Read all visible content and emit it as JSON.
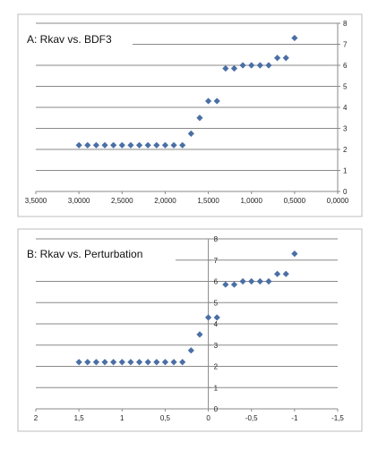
{
  "chart_data": [
    {
      "type": "scatter",
      "title": "A: Rkav vs. BDF3",
      "xlabel": "",
      "ylabel": "",
      "x_reversed": true,
      "xlim": [
        0,
        3.5
      ],
      "ylim": [
        0,
        8
      ],
      "grid": true,
      "x_ticks": [
        "3,5000",
        "3,0000",
        "2,5000",
        "2,0000",
        "1,5000",
        "1,0000",
        "0,5000",
        "0,0000"
      ],
      "y_ticks": [
        "0",
        "1",
        "2",
        "3",
        "4",
        "5",
        "6",
        "7",
        "8"
      ],
      "marker_color": "#4a6fa5",
      "points": [
        [
          3.0,
          2.2
        ],
        [
          2.9,
          2.2
        ],
        [
          2.8,
          2.2
        ],
        [
          2.7,
          2.2
        ],
        [
          2.6,
          2.2
        ],
        [
          2.5,
          2.2
        ],
        [
          2.4,
          2.2
        ],
        [
          2.3,
          2.2
        ],
        [
          2.2,
          2.2
        ],
        [
          2.1,
          2.2
        ],
        [
          2.0,
          2.2
        ],
        [
          1.9,
          2.2
        ],
        [
          1.8,
          2.2
        ],
        [
          1.7,
          2.75
        ],
        [
          1.6,
          3.5
        ],
        [
          1.5,
          4.3
        ],
        [
          1.4,
          4.3
        ],
        [
          1.3,
          5.85
        ],
        [
          1.2,
          5.85
        ],
        [
          1.1,
          6.0
        ],
        [
          1.0,
          6.0
        ],
        [
          0.9,
          6.0
        ],
        [
          0.8,
          6.0
        ],
        [
          0.7,
          6.35
        ],
        [
          0.6,
          6.35
        ],
        [
          0.5,
          7.3
        ]
      ]
    },
    {
      "type": "scatter",
      "title": "B: Rkav vs. Perturbation",
      "xlabel": "",
      "ylabel": "",
      "x_reversed": true,
      "xlim": [
        -1.5,
        2
      ],
      "ylim": [
        0,
        8
      ],
      "grid": true,
      "x_ticks": [
        "2",
        "1,5",
        "1",
        "0,5",
        "0",
        "-0,5",
        "-1",
        "-1,5"
      ],
      "y_ticks": [
        "0",
        "1",
        "2",
        "3",
        "4",
        "5",
        "6",
        "7",
        "8"
      ],
      "marker_color": "#4a6fa5",
      "points": [
        [
          1.5,
          2.2
        ],
        [
          1.4,
          2.2
        ],
        [
          1.3,
          2.2
        ],
        [
          1.2,
          2.2
        ],
        [
          1.1,
          2.2
        ],
        [
          1.0,
          2.2
        ],
        [
          0.9,
          2.2
        ],
        [
          0.8,
          2.2
        ],
        [
          0.7,
          2.2
        ],
        [
          0.6,
          2.2
        ],
        [
          0.5,
          2.2
        ],
        [
          0.4,
          2.2
        ],
        [
          0.3,
          2.2
        ],
        [
          0.2,
          2.75
        ],
        [
          0.1,
          3.5
        ],
        [
          0.0,
          4.3
        ],
        [
          -0.1,
          4.3
        ],
        [
          -0.2,
          5.85
        ],
        [
          -0.3,
          5.85
        ],
        [
          -0.4,
          6.0
        ],
        [
          -0.5,
          6.0
        ],
        [
          -0.6,
          6.0
        ],
        [
          -0.7,
          6.0
        ],
        [
          -0.8,
          6.35
        ],
        [
          -0.9,
          6.35
        ],
        [
          -1.0,
          7.3
        ]
      ]
    }
  ]
}
